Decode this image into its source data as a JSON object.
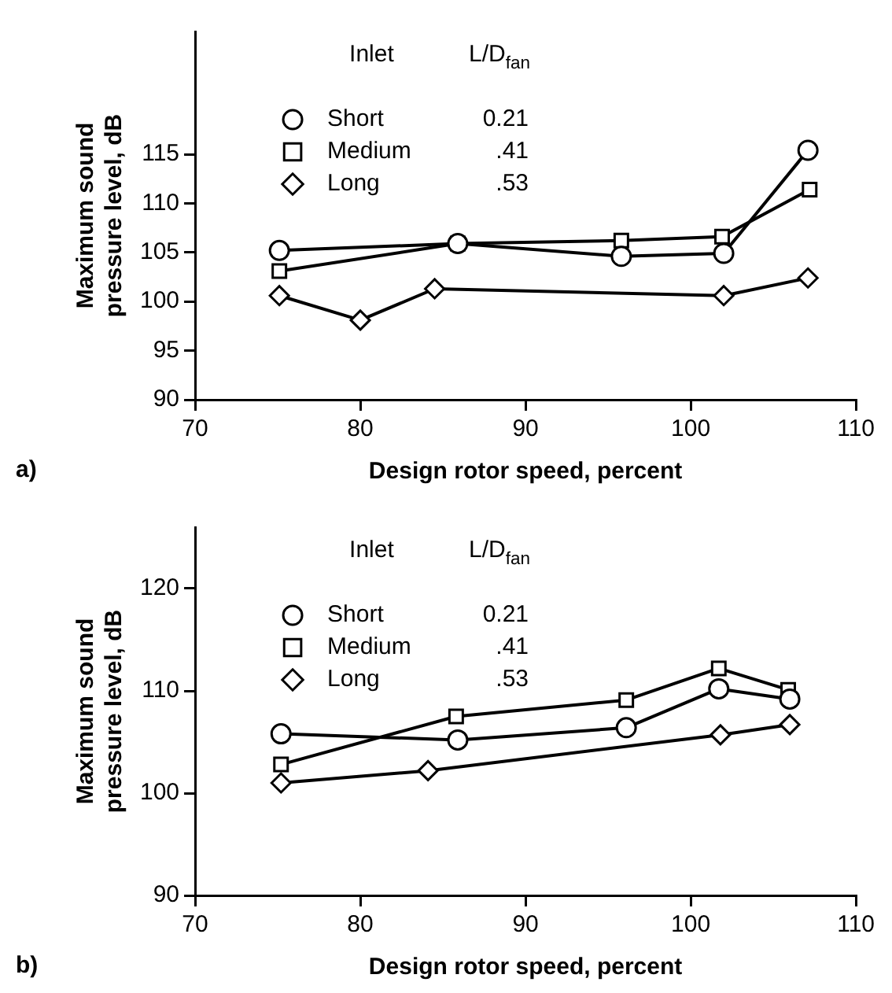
{
  "chart_data": [
    {
      "type": "line",
      "xlabel": "Design rotor speed, percent",
      "ylabel": "Maximum sound pressure level, dB",
      "legend_title": "Inlet",
      "legend": "top",
      "grid": false,
      "line_style": "solid",
      "annotations": [
        "a)",
        "L/D$_{fan}$",
        "0.21",
        ".41",
        ".53"
      ],
      "xlim": [
        70,
        110
      ],
      "xticks": [
        70,
        80,
        90,
        100,
        110
      ],
      "ylim": [
        90,
        127.5
      ],
      "yticks": [
        90,
        95,
        100,
        105,
        110,
        115
      ],
      "series": [
        {
          "name": "Short",
          "color": "#000000",
          "marker": "circle",
          "x": [
            75.1,
            85.9,
            95.8,
            102.0,
            107.1
          ],
          "values": [
            105.2,
            105.9,
            104.6,
            104.9,
            115.4
          ]
        },
        {
          "name": "Medium",
          "color": "#000000",
          "marker": "square",
          "x": [
            75.1,
            85.9,
            95.8,
            101.9,
            107.2
          ],
          "values": [
            103.1,
            105.9,
            106.2,
            106.6,
            111.4
          ]
        },
        {
          "name": "Long",
          "color": "#000000",
          "marker": "diamond",
          "x": [
            75.1,
            80.0,
            84.5,
            102.0,
            107.1
          ],
          "values": [
            100.6,
            98.1,
            101.3,
            100.6,
            102.4
          ]
        }
      ]
    },
    {
      "type": "line",
      "xlabel": "Design rotor speed, percent",
      "ylabel": "Maximum sound pressure level, dB",
      "legend_title": "Inlet",
      "legend": "top",
      "grid": false,
      "line_style": "solid",
      "annotations": [
        "b)",
        "L/D$_{fan}$",
        "0.21",
        ".41",
        ".53"
      ],
      "xlim": [
        70,
        110
      ],
      "xticks": [
        70,
        80,
        90,
        100,
        110
      ],
      "ylim": [
        90,
        126
      ],
      "yticks": [
        90,
        100,
        110,
        120
      ],
      "series": [
        {
          "name": "Short",
          "color": "#000000",
          "marker": "circle",
          "x": [
            75.2,
            85.9,
            96.1,
            101.7,
            106.0
          ],
          "values": [
            105.8,
            105.2,
            106.4,
            110.2,
            109.2
          ]
        },
        {
          "name": "Medium",
          "color": "#000000",
          "marker": "square",
          "x": [
            75.2,
            85.8,
            96.1,
            101.7,
            105.9
          ],
          "values": [
            102.8,
            107.5,
            109.1,
            112.2,
            110.1
          ]
        },
        {
          "name": "Long",
          "color": "#000000",
          "marker": "diamond",
          "x": [
            75.2,
            84.1,
            101.8,
            106.0
          ],
          "values": [
            101.0,
            102.2,
            105.7,
            106.7
          ]
        }
      ]
    }
  ]
}
